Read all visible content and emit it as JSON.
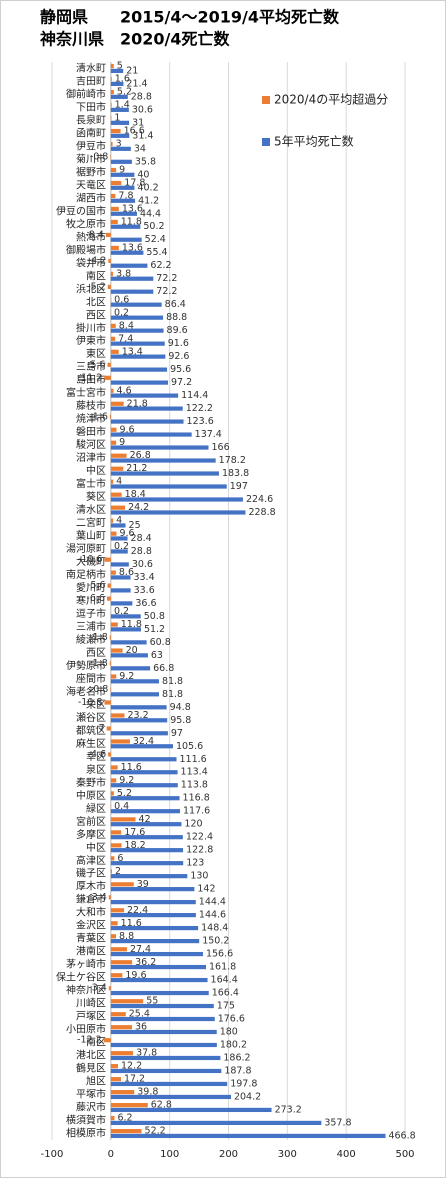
{
  "chart_data": {
    "type": "barh",
    "title": "静岡県　　2015/4～2019/4平均死亡数",
    "subtitle": "神奈川県　2020/4死亡数",
    "categories": [
      "清水町",
      "吉田町",
      "御前崎市",
      "下田市",
      "長泉町",
      "函南町",
      "伊豆市",
      "菊川市",
      "裾野市",
      "天竜区",
      "湖西市",
      "伊豆の国市",
      "牧之原市",
      "熱海市",
      "御殿場市",
      "袋井市",
      "南区",
      "浜北区",
      "北区",
      "西区",
      "掛川市",
      "伊東市",
      "東区",
      "三島市",
      "島田市",
      "富士宮市",
      "藤枝市",
      "焼津市",
      "磐田市",
      "駿河区",
      "沼津市",
      "中区",
      "富士市",
      "葵区",
      "清水区",
      "二宮町",
      "葉山町",
      "湯河原町",
      "大磯町",
      "南足柄市",
      "愛川町",
      "寒川町",
      "逗子市",
      "三浦市",
      "綾瀬市",
      "西区",
      "伊勢原市",
      "座間市",
      "海老名市",
      "栄区",
      "瀬谷区",
      "都筑区",
      "麻生区",
      "幸区",
      "泉区",
      "秦野市",
      "中原区",
      "緑区",
      "宮前区",
      "多摩区",
      "中区",
      "高津区",
      "磯子区",
      "厚木市",
      "鎌倉市",
      "大和市",
      "金沢区",
      "青葉区",
      "港南区",
      "茅ヶ崎市",
      "保土ケ谷区",
      "神奈川区",
      "川崎区",
      "戸塚区",
      "小田原市",
      "南区",
      "港北区",
      "鶴見区",
      "旭区",
      "平塚市",
      "藤沢市",
      "横須賀市",
      "相模原市"
    ],
    "series": [
      {
        "name": "2020/4の平均超過分",
        "color": "#ed7d31",
        "values": [
          5,
          1.6,
          5.2,
          1.4,
          1,
          16.6,
          3,
          -0.8,
          9,
          17.8,
          7.8,
          13.6,
          11.8,
          -8.4,
          13.6,
          -4.2,
          3.8,
          -5.2,
          0.6,
          0.2,
          8.4,
          7.4,
          13.4,
          -5.6,
          -11.2,
          4.6,
          21.8,
          -1.6,
          9.6,
          9,
          26.8,
          21.2,
          4,
          18.4,
          24.2,
          4,
          9.6,
          0.2,
          -10.6,
          8.6,
          -5.6,
          -6.6,
          0.2,
          11.8,
          -1.8,
          20,
          -1.8,
          9.2,
          -0.8,
          -10.8,
          23.2,
          -7,
          32.4,
          -4.6,
          11.6,
          9.2,
          5.2,
          0.4,
          42,
          17.6,
          18.2,
          6,
          2,
          39,
          -3.4,
          22.4,
          11.6,
          8.8,
          27.4,
          36.2,
          19.6,
          -3.4,
          55,
          25.4,
          36,
          -12.2,
          37.8,
          12.2,
          17.2,
          39.8,
          62.8,
          6.2,
          52.2
        ]
      },
      {
        "name": "5年平均死亡数",
        "color": "#4472c4",
        "values": [
          21,
          21.4,
          28.8,
          30.6,
          31,
          31.4,
          34,
          35.8,
          40,
          40.2,
          41.2,
          44.4,
          50.2,
          52.4,
          55.4,
          62.2,
          72.2,
          72.2,
          86.4,
          88.8,
          89.6,
          91.6,
          92.6,
          95.6,
          97.2,
          114.4,
          122.2,
          123.6,
          137.4,
          166,
          178.2,
          183.8,
          197,
          224.6,
          228.8,
          25,
          28.4,
          28.8,
          30.6,
          33.4,
          33.6,
          36.6,
          50.8,
          51.2,
          60.8,
          63,
          66.8,
          81.8,
          81.8,
          94.8,
          95.8,
          97,
          105.6,
          111.6,
          113.4,
          113.8,
          116.8,
          117.6,
          120,
          122.4,
          122.8,
          123,
          130,
          142,
          144.4,
          144.6,
          148.4,
          150.2,
          156.6,
          161.8,
          164.4,
          166.4,
          175,
          176.6,
          180,
          180.2,
          186.2,
          187.8,
          197.8,
          204.2,
          273.2,
          357.8,
          466.8
        ]
      }
    ],
    "xlim": [
      -100,
      500
    ],
    "xticks": [
      -100,
      0,
      100,
      200,
      300,
      400,
      500
    ],
    "grid": true,
    "legend": "upper right"
  }
}
